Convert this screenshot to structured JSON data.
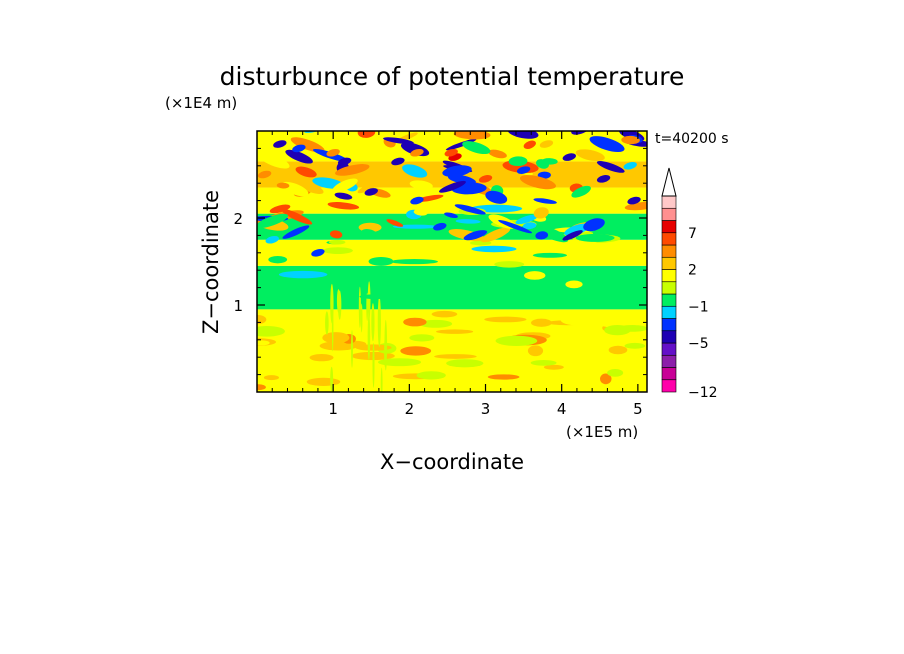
{
  "chart_data": {
    "type": "heatmap",
    "title": "disturbunce of potential temperature",
    "time_label": "t=40200 s",
    "xlabel": "X−coordinate",
    "ylabel": "Z−coordinate",
    "x_multiplier": "(×1E5 m)",
    "y_multiplier": "(×1E4 m)",
    "xlim": [
      0,
      5.12
    ],
    "ylim": [
      0,
      3.0
    ],
    "x_ticks": [
      {
        "value": 1,
        "label": "1"
      },
      {
        "value": 2,
        "label": "2"
      },
      {
        "value": 3,
        "label": "3"
      },
      {
        "value": 4,
        "label": "4"
      },
      {
        "value": 5,
        "label": "5"
      }
    ],
    "y_ticks": [
      {
        "value": 1,
        "label": "1"
      },
      {
        "value": 2,
        "label": "2"
      }
    ],
    "colorbar": {
      "levels": [
        -12,
        -10,
        -8,
        -6,
        -5,
        -4,
        -2,
        -1,
        0,
        1,
        2,
        3,
        5,
        7,
        8,
        10
      ],
      "colors": [
        "#ff00aa",
        "#c80096",
        "#8c1eaa",
        "#6410c8",
        "#1e00b4",
        "#0032ff",
        "#00d2ff",
        "#00ee60",
        "#c8ff00",
        "#ffff00",
        "#ffc800",
        "#ff8c00",
        "#ff4a00",
        "#e60000",
        "#ff9090",
        "#ffc8c8"
      ],
      "labels": [
        {
          "value": -12,
          "label": "−12"
        },
        {
          "value": -5,
          "label": "−5"
        },
        {
          "value": -1,
          "label": "−1"
        },
        {
          "value": 2,
          "label": "2"
        },
        {
          "value": 7,
          "label": "7"
        }
      ],
      "extend": "max"
    }
  }
}
